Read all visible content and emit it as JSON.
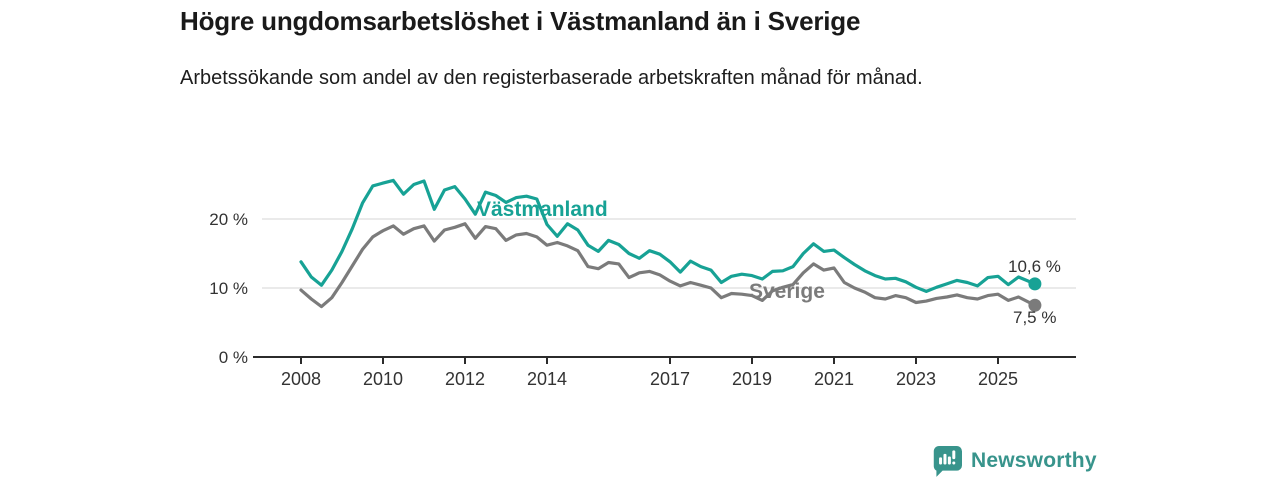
{
  "header": {
    "title": "Högre ungdomsarbetslöshet i Västmanland än i Sverige",
    "subtitle": "Arbetssökande som andel av den registerbaserade arbetskraften månad för månad."
  },
  "colors": {
    "vastmanland_line": "#17a295",
    "sverige_line": "#7b7b7b",
    "gridline": "#dddddd",
    "axis": "#2b2b2b",
    "tick_text": "#333333",
    "brand_teal": "#38948c"
  },
  "chart_data": {
    "type": "line",
    "title": "Högre ungdomsarbetslöshet i Västmanland än i Sverige",
    "subtitle": "Arbetssökande som andel av den registerbaserade arbetskraften månad för månad.",
    "x_unit": "decimal_year",
    "grid": "horizontal",
    "legend_position": "inline-labels",
    "ylim": [
      0,
      27
    ],
    "xlim": [
      2007.1,
      2026.9
    ],
    "x_ticks": [
      "2008",
      "2010",
      "2012",
      "2014",
      "2017",
      "2019",
      "2021",
      "2023",
      "2025"
    ],
    "x_tick_years": [
      2008,
      2010,
      2012,
      2014,
      2017,
      2019,
      2021,
      2023,
      2025
    ],
    "y_ticks": [
      {
        "value": 0,
        "label": "0 %"
      },
      {
        "value": 10,
        "label": "10 %"
      },
      {
        "value": 20,
        "label": "20 %"
      }
    ],
    "x": [
      2008.0,
      2008.25,
      2008.5,
      2008.75,
      2009.0,
      2009.25,
      2009.5,
      2009.75,
      2010.0,
      2010.25,
      2010.5,
      2010.75,
      2011.0,
      2011.25,
      2011.5,
      2011.75,
      2012.0,
      2012.25,
      2012.5,
      2012.75,
      2013.0,
      2013.25,
      2013.5,
      2013.75,
      2014.0,
      2014.25,
      2014.5,
      2014.75,
      2015.0,
      2015.25,
      2015.5,
      2015.75,
      2016.0,
      2016.25,
      2016.5,
      2016.75,
      2017.0,
      2017.25,
      2017.5,
      2017.75,
      2018.0,
      2018.25,
      2018.5,
      2018.75,
      2019.0,
      2019.25,
      2019.5,
      2019.75,
      2020.0,
      2020.25,
      2020.5,
      2020.75,
      2021.0,
      2021.25,
      2021.5,
      2021.75,
      2022.0,
      2022.25,
      2022.5,
      2022.75,
      2023.0,
      2023.25,
      2023.5,
      2023.75,
      2024.0,
      2024.25,
      2024.5,
      2024.75,
      2025.0,
      2025.25,
      2025.5,
      2025.9
    ],
    "series": [
      {
        "name": "Västmanland",
        "color": "#17a295",
        "end_value": 10.6,
        "end_label": "10,6 %",
        "values": [
          13.8,
          11.6,
          10.4,
          12.6,
          15.3,
          18.6,
          22.3,
          24.8,
          25.2,
          25.6,
          23.6,
          25.0,
          25.5,
          21.4,
          24.2,
          24.7,
          22.9,
          20.7,
          23.9,
          23.4,
          22.4,
          23.1,
          23.3,
          22.9,
          19.2,
          17.5,
          19.3,
          18.4,
          16.2,
          15.3,
          16.9,
          16.3,
          15.0,
          14.3,
          15.4,
          14.9,
          13.8,
          12.3,
          13.9,
          13.1,
          12.6,
          10.8,
          11.7,
          12.0,
          11.8,
          11.3,
          12.4,
          12.5,
          13.1,
          15.0,
          16.4,
          15.3,
          15.5,
          14.4,
          13.4,
          12.5,
          11.8,
          11.3,
          11.4,
          10.9,
          10.1,
          9.5,
          10.1,
          10.6,
          11.1,
          10.8,
          10.3,
          11.5,
          11.7,
          10.5,
          11.6,
          10.6
        ]
      },
      {
        "name": "Sverige",
        "color": "#7b7b7b",
        "end_value": 7.5,
        "end_label": "7,5 %",
        "values": [
          9.7,
          8.4,
          7.3,
          8.6,
          10.8,
          13.2,
          15.6,
          17.4,
          18.3,
          19.0,
          17.8,
          18.6,
          19.0,
          16.8,
          18.4,
          18.8,
          19.3,
          17.2,
          18.9,
          18.6,
          16.9,
          17.7,
          17.9,
          17.4,
          16.2,
          16.6,
          16.1,
          15.4,
          13.1,
          12.8,
          13.7,
          13.5,
          11.5,
          12.2,
          12.4,
          11.9,
          11.0,
          10.3,
          10.8,
          10.4,
          10.0,
          8.6,
          9.2,
          9.1,
          8.9,
          8.2,
          9.6,
          10.1,
          10.5,
          12.2,
          13.5,
          12.6,
          12.9,
          10.8,
          10.0,
          9.4,
          8.6,
          8.4,
          8.9,
          8.6,
          7.9,
          8.1,
          8.5,
          8.7,
          9.0,
          8.6,
          8.4,
          8.9,
          9.1,
          8.2,
          8.7,
          7.5
        ]
      }
    ]
  },
  "footer": {
    "brand": "Newsworthy",
    "logo_icon": "bar-chart-speech-bubble"
  }
}
